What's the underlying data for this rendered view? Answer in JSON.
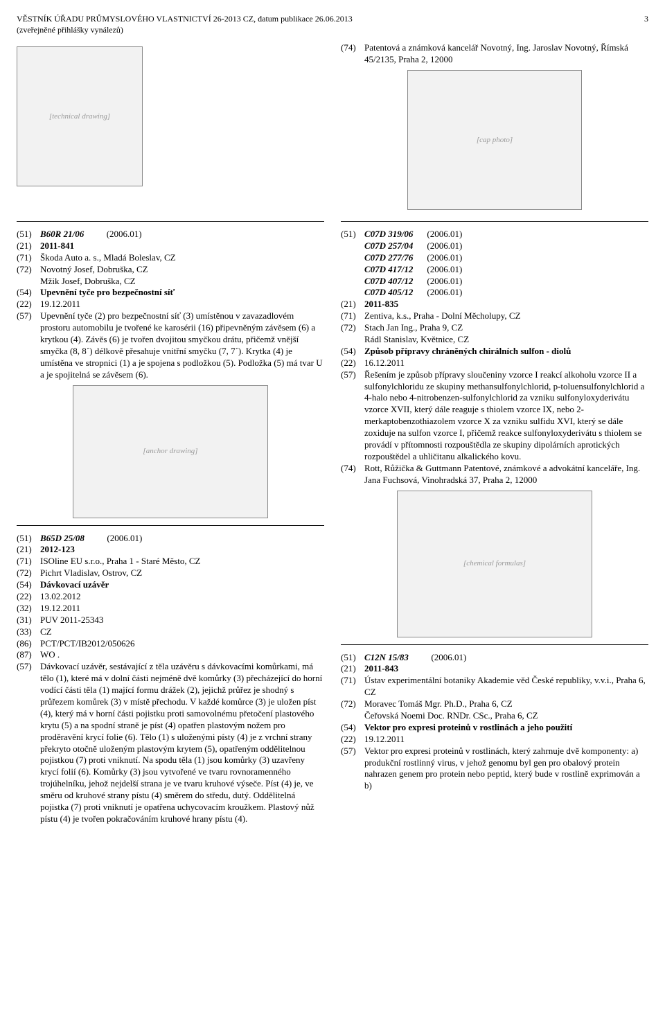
{
  "header": {
    "line1": "VĚSTNÍK ÚŘADU PRŮMYSLOVÉHO VLASTNICTVÍ 26-2013 CZ, datum publikace 26.06.2013",
    "line2": "(zveřejněné přihlášky vynálezů)",
    "page": "3"
  },
  "top_right": {
    "c74": "Patentová a známková kancelář Novotný, Ing. Jaroslav Novotný, Římská 45/2135, Praha 2, 12000"
  },
  "entry1": {
    "c51a": "B60R 21/06",
    "c51b": "(2006.01)",
    "c21": "2011-841",
    "c71": "Škoda Auto a. s., Mladá Boleslav, CZ",
    "c72a": "Novotný Josef, Dobruška, CZ",
    "c72b": "Mžik Josef, Dobruška, CZ",
    "c54": "Upevnění tyče pro bezpečnostní síť",
    "c22": "19.12.2011",
    "c57": "Upevnění tyče (2) pro bezpečnostní síť (3) umístěnou v zavazadlovém prostoru automobilu je tvořené ke karosérii (16) připevněným závěsem (6) a krytkou (4). Závěs (6) je tvořen dvojitou smyčkou drátu, přičemž vnější smyčka (8, 8´) délkově přesahuje vnitřní smyčku (7, 7´). Krytka (4) je umístěna ve stropnici (1) a je spojena s podložkou (5). Podložka (5) má tvar U a je spojitelná se závěsem (6)."
  },
  "entry2": {
    "c51a": "B65D 25/08",
    "c51b": "(2006.01)",
    "c21": "2012-123",
    "c71": "ISOline EU s.r.o., Praha 1 - Staré Město, CZ",
    "c72": "Pichrt Vladislav, Ostrov, CZ",
    "c54": "Dávkovací uzávěr",
    "c22": "13.02.2012",
    "c32": "19.12.2011",
    "c31": "PUV 2011-25343",
    "c33": "CZ",
    "c86": "PCT/PCT/IB2012/050626",
    "c87": "WO .",
    "c57": "Dávkovací uzávěr, sestávající z těla uzávěru s dávkovacími komůrkami, má tělo (1), které má v dolní části nejméně dvě komůrky (3) přecházející do horní vodící části těla (1) mající formu drážek (2), jejichž průřez je shodný s průřezem komůrek (3) v místě přechodu. V každé komůrce (3) je uložen píst (4), který má v horní části pojistku proti samovolnému přetočení plastového krytu (5) a na spodní straně je píst (4) opatřen plastovým nožem pro proděravění krycí folie (6). Tělo (1) s uloženými písty (4) je z vrchní strany překryto otočně uloženým plastovým krytem (5), opatřeným oddělitelnou pojistkou (7) proti vniknutí. Na spodu těla (1) jsou komůrky (3) uzavřeny krycí folií (6). Komůrky (3) jsou vytvořené ve tvaru rovnoramenného trojúhelníku, jehož nejdelší strana je ve tvaru kruhové výseče. Píst (4) je, ve směru od kruhové strany pístu (4) směrem do středu, dutý. Oddělitelná pojistka (7) proti vniknutí je opatřena uchycovacím kroužkem. Plastový nůž pístu (4) je tvořen pokračováním kruhové hrany pístu (4)."
  },
  "entry3": {
    "cls": [
      [
        "C07D 319/06",
        "(2006.01)"
      ],
      [
        "C07D 257/04",
        "(2006.01)"
      ],
      [
        "C07D 277/76",
        "(2006.01)"
      ],
      [
        "C07D 417/12",
        "(2006.01)"
      ],
      [
        "C07D 407/12",
        "(2006.01)"
      ],
      [
        "C07D 405/12",
        "(2006.01)"
      ]
    ],
    "c21": "2011-835",
    "c71": "Zentiva, k.s., Praha - Dolní Měcholupy, CZ",
    "c72a": "Stach Jan Ing., Praha 9, CZ",
    "c72b": "Rádl Stanislav, Květnice, CZ",
    "c54": "Způsob přípravy chráněných chirálních sulfon - diolů",
    "c22": "16.12.2011",
    "c57": "Řešením je způsob přípravy sloučeniny vzorce I reakcí alkoholu vzorce II a sulfonylchloridu ze skupiny methansulfonylchlorid, p-toluensulfonylchlorid a 4-halo nebo 4-nitrobenzen-sulfonylchlorid za vzniku sulfonyloxyderivátu vzorce XVII, který dále reaguje s thiolem vzorce IX, nebo 2-merkaptobenzothiazolem vzorce X za vzniku sulfidu XVI, který se dále zoxiduje na sulfon vzorce I, přičemž reakce sulfonyloxyderivátu s thiolem se provádí v přítomnosti rozpouštědla ze skupiny dipolárních aprotických rozpouštědel a uhličitanu alkalického kovu.",
    "c74": "Rott, Růžička & Guttmann Patentové, známkové a advokátní kanceláře, Ing. Jana Fuchsová, Vinohradská 37, Praha 2, 12000"
  },
  "entry4": {
    "c51a": "C12N 15/83",
    "c51b": "(2006.01)",
    "c21": "2011-843",
    "c71": "Ústav experimentální botaniky Akademie věd České republiky, v.v.i., Praha 6, CZ",
    "c72a": "Moravec Tomáš Mgr. Ph.D., Praha 6, CZ",
    "c72b": "Čeřovská Noemi Doc. RNDr. CSc., Praha 6, CZ",
    "c54": "Vektor pro expresi proteinů v rostlinách a jeho použití",
    "c22": "19.12.2011",
    "c57": "Vektor pro expresi proteinů v rostlinách, který zahrnuje dvě komponenty: a) produkční rostlinný virus, v jehož genomu byl gen pro obalový protein nahrazen genem pro protein nebo peptid, který bude v rostlině exprimován a b)"
  },
  "labels": {
    "c21": "(21)",
    "c22": "(22)",
    "c31": "(31)",
    "c32": "(32)",
    "c33": "(33)",
    "c51": "(51)",
    "c54": "(54)",
    "c57": "(57)",
    "c71": "(71)",
    "c72": "(72)",
    "c74": "(74)",
    "c86": "(86)",
    "c87": "(87)"
  },
  "img": {
    "a": "[technical drawing]",
    "b": "[cap photo]",
    "c": "[anchor drawing]",
    "d": "[chemical formulas]"
  }
}
